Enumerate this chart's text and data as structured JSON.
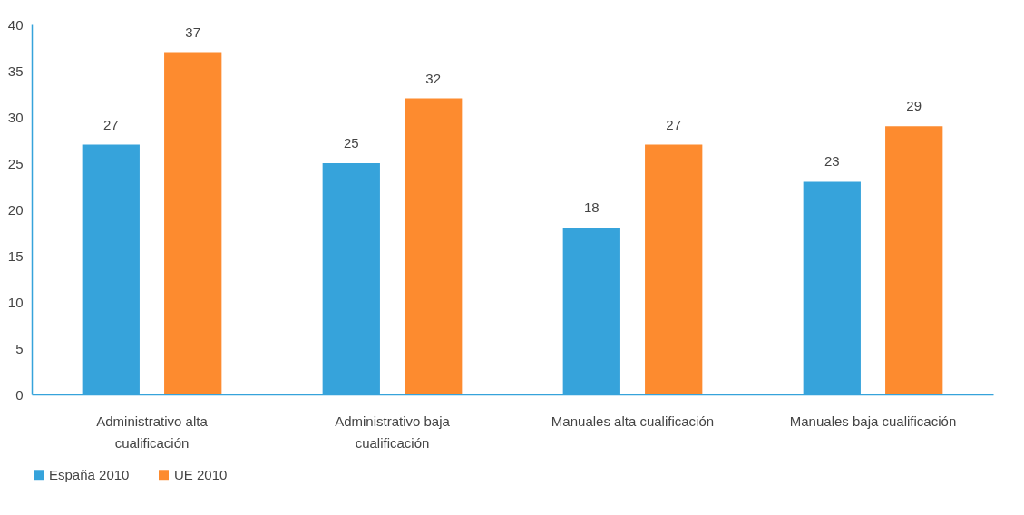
{
  "chart_data": {
    "type": "bar",
    "categories": [
      "Administrativo alta cualificación",
      "Administrativo baja cualificación",
      "Manuales alta cualificación",
      "Manuales baja cualificación"
    ],
    "series": [
      {
        "name": "España 2010",
        "color": "#36a3db",
        "values": [
          27,
          25,
          18,
          23
        ]
      },
      {
        "name": "UE 2010",
        "color": "#fd8b2f",
        "values": [
          37,
          32,
          27,
          29
        ]
      }
    ],
    "ylim": [
      0,
      40
    ],
    "yticks": [
      0,
      5,
      10,
      15,
      20,
      25,
      30,
      35,
      40
    ],
    "grid": false,
    "legend": "bottom",
    "data_labels": true
  }
}
